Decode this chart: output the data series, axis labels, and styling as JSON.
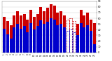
{
  "title": "Milwaukee Weather Outdoor Temperature",
  "subtitle": "Daily High/Low",
  "highs": [
    62,
    55,
    48,
    65,
    72,
    65,
    68,
    58,
    75,
    62,
    68,
    80,
    72,
    78,
    85,
    82,
    70,
    72,
    65,
    58,
    60,
    55,
    50,
    75,
    65,
    70,
    58,
    52
  ],
  "lows": [
    42,
    32,
    25,
    44,
    50,
    42,
    46,
    36,
    52,
    40,
    46,
    56,
    50,
    54,
    60,
    58,
    48,
    50,
    44,
    38,
    40,
    36,
    30,
    52,
    44,
    48,
    38,
    15
  ],
  "high_color": "#cc0000",
  "low_color": "#0000cc",
  "ylim": [
    0,
    90
  ],
  "yticks": [
    0,
    10,
    20,
    30,
    40,
    50,
    60,
    70,
    80,
    90
  ],
  "background": "#ffffff",
  "header_bg": "#222222",
  "grid_color": "#cccccc",
  "dashed_bar_indices": [
    19,
    20,
    21
  ],
  "n_bars": 28
}
